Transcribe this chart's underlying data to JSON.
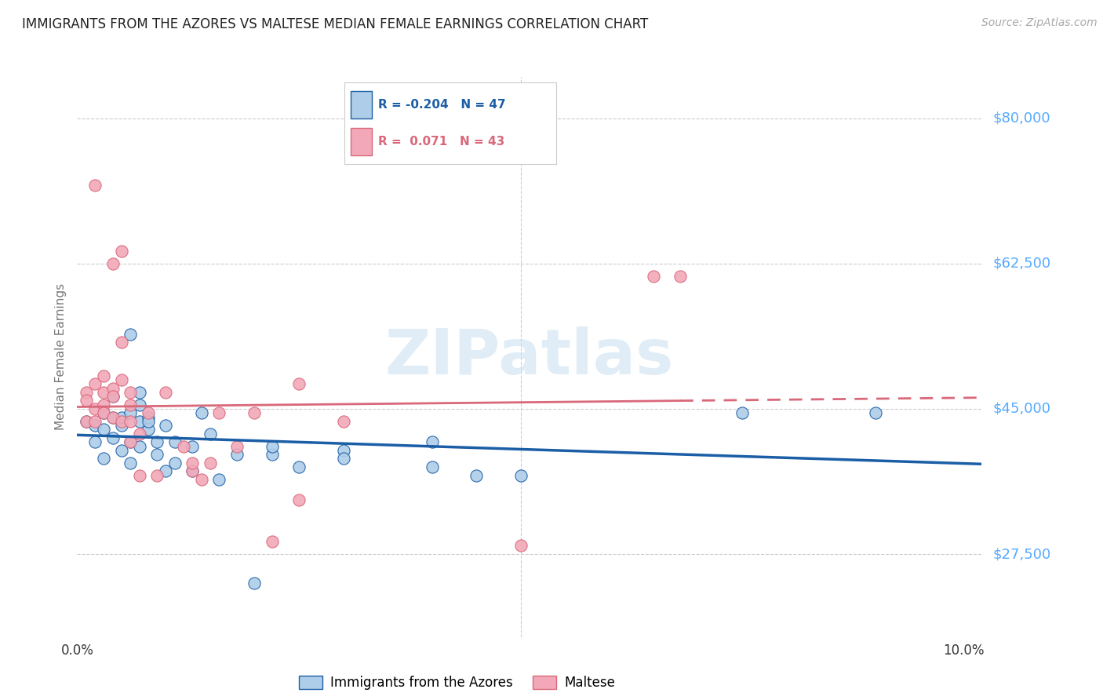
{
  "title": "IMMIGRANTS FROM THE AZORES VS MALTESE MEDIAN FEMALE EARNINGS CORRELATION CHART",
  "source": "Source: ZipAtlas.com",
  "ylabel": "Median Female Earnings",
  "ytick_labels": [
    "$80,000",
    "$62,500",
    "$45,000",
    "$27,500"
  ],
  "ytick_values": [
    80000,
    62500,
    45000,
    27500
  ],
  "ymin": 17500,
  "ymax": 85000,
  "xmin": 0.0,
  "xmax": 0.102,
  "watermark": "ZIPatlas",
  "azores_line_color": "#1B5EA6",
  "maltese_line_color": "#D9687A",
  "azores_scatter_color": "#AECDE8",
  "maltese_scatter_color": "#F2A8B8",
  "azores_scatter_edge": "#1B5EA6",
  "maltese_scatter_edge": "#D9687A",
  "azores_points": [
    [
      0.001,
      43500
    ],
    [
      0.002,
      41000
    ],
    [
      0.002,
      43000
    ],
    [
      0.003,
      42500
    ],
    [
      0.003,
      39000
    ],
    [
      0.003,
      44500
    ],
    [
      0.004,
      44000
    ],
    [
      0.004,
      41500
    ],
    [
      0.004,
      46500
    ],
    [
      0.005,
      43000
    ],
    [
      0.005,
      40000
    ],
    [
      0.005,
      44000
    ],
    [
      0.006,
      38500
    ],
    [
      0.006,
      41000
    ],
    [
      0.006,
      44500
    ],
    [
      0.006,
      54000
    ],
    [
      0.007,
      40500
    ],
    [
      0.007,
      43500
    ],
    [
      0.007,
      45500
    ],
    [
      0.007,
      47000
    ],
    [
      0.008,
      44000
    ],
    [
      0.008,
      42500
    ],
    [
      0.008,
      43500
    ],
    [
      0.009,
      41000
    ],
    [
      0.009,
      39500
    ],
    [
      0.01,
      37500
    ],
    [
      0.01,
      43000
    ],
    [
      0.011,
      41000
    ],
    [
      0.011,
      38500
    ],
    [
      0.013,
      37500
    ],
    [
      0.013,
      40500
    ],
    [
      0.014,
      44500
    ],
    [
      0.015,
      42000
    ],
    [
      0.016,
      36500
    ],
    [
      0.018,
      39500
    ],
    [
      0.02,
      24000
    ],
    [
      0.022,
      39500
    ],
    [
      0.022,
      40500
    ],
    [
      0.025,
      38000
    ],
    [
      0.03,
      40000
    ],
    [
      0.03,
      39000
    ],
    [
      0.04,
      41000
    ],
    [
      0.04,
      38000
    ],
    [
      0.045,
      37000
    ],
    [
      0.05,
      37000
    ],
    [
      0.075,
      44500
    ],
    [
      0.09,
      44500
    ]
  ],
  "maltese_points": [
    [
      0.001,
      47000
    ],
    [
      0.001,
      43500
    ],
    [
      0.001,
      46000
    ],
    [
      0.002,
      48000
    ],
    [
      0.002,
      45000
    ],
    [
      0.002,
      43500
    ],
    [
      0.002,
      72000
    ],
    [
      0.003,
      49000
    ],
    [
      0.003,
      45500
    ],
    [
      0.003,
      44500
    ],
    [
      0.003,
      47000
    ],
    [
      0.004,
      47500
    ],
    [
      0.004,
      44000
    ],
    [
      0.004,
      46500
    ],
    [
      0.004,
      62500
    ],
    [
      0.005,
      43500
    ],
    [
      0.005,
      48500
    ],
    [
      0.005,
      53000
    ],
    [
      0.005,
      64000
    ],
    [
      0.006,
      41000
    ],
    [
      0.006,
      45500
    ],
    [
      0.006,
      43500
    ],
    [
      0.006,
      47000
    ],
    [
      0.007,
      37000
    ],
    [
      0.007,
      42000
    ],
    [
      0.008,
      44500
    ],
    [
      0.009,
      37000
    ],
    [
      0.01,
      47000
    ],
    [
      0.012,
      40500
    ],
    [
      0.013,
      37500
    ],
    [
      0.013,
      38500
    ],
    [
      0.014,
      36500
    ],
    [
      0.015,
      38500
    ],
    [
      0.016,
      44500
    ],
    [
      0.018,
      40500
    ],
    [
      0.02,
      44500
    ],
    [
      0.022,
      29000
    ],
    [
      0.025,
      48000
    ],
    [
      0.025,
      34000
    ],
    [
      0.03,
      43500
    ],
    [
      0.05,
      28500
    ],
    [
      0.065,
      61000
    ],
    [
      0.068,
      61000
    ]
  ],
  "background_color": "#FFFFFF",
  "grid_color": "#CCCCCC",
  "title_color": "#222222",
  "axis_label_color": "#777777",
  "ytick_color": "#55AAFF",
  "legend_text_az_color": "#1B5EA6",
  "legend_text_ma_color": "#D9687A"
}
